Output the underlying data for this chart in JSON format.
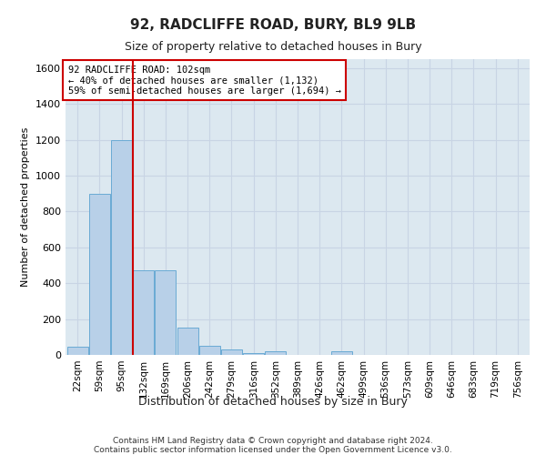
{
  "title": "92, RADCLIFFE ROAD, BURY, BL9 9LB",
  "subtitle": "Size of property relative to detached houses in Bury",
  "xlabel": "Distribution of detached houses by size in Bury",
  "ylabel": "Number of detached properties",
  "categories": [
    "22sqm",
    "59sqm",
    "95sqm",
    "132sqm",
    "169sqm",
    "206sqm",
    "242sqm",
    "279sqm",
    "316sqm",
    "352sqm",
    "389sqm",
    "426sqm",
    "462sqm",
    "499sqm",
    "536sqm",
    "573sqm",
    "609sqm",
    "646sqm",
    "683sqm",
    "719sqm",
    "756sqm"
  ],
  "values": [
    45,
    900,
    1200,
    470,
    470,
    150,
    50,
    30,
    12,
    18,
    0,
    0,
    20,
    0,
    0,
    0,
    0,
    0,
    0,
    0,
    0
  ],
  "bar_color": "#b8d0e8",
  "bar_edge_color": "#6aaad4",
  "grid_color": "#c8d4e4",
  "background_color": "#dce8f0",
  "vline_color": "#cc0000",
  "annotation_text": "92 RADCLIFFE ROAD: 102sqm\n← 40% of detached houses are smaller (1,132)\n59% of semi-detached houses are larger (1,694) →",
  "annotation_box_color": "#ffffff",
  "annotation_box_edge": "#cc0000",
  "ylim": [
    0,
    1650
  ],
  "yticks": [
    0,
    200,
    400,
    600,
    800,
    1000,
    1200,
    1400,
    1600
  ],
  "footer": "Contains HM Land Registry data © Crown copyright and database right 2024.\nContains public sector information licensed under the Open Government Licence v3.0.",
  "fig_facecolor": "#ffffff",
  "title_fontsize": 11,
  "subtitle_fontsize": 9,
  "xlabel_fontsize": 9,
  "ylabel_fontsize": 8
}
